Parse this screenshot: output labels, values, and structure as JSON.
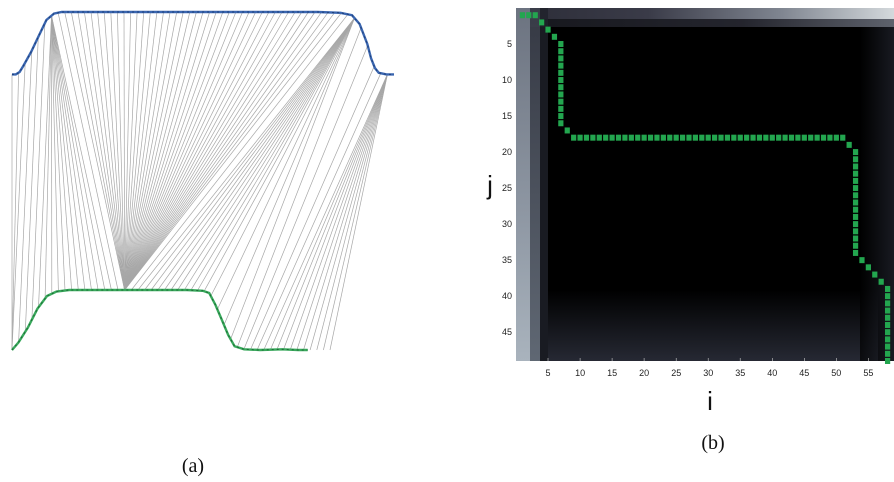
{
  "chart_data": [
    {
      "type": "line",
      "caption": "(a)",
      "series": [
        {
          "values": [
            [
              0.0,
              0.22
            ],
            [
              0.01,
              0.22
            ],
            [
              0.02,
              0.25
            ],
            [
              0.03,
              0.33
            ],
            [
              0.05,
              0.5
            ],
            [
              0.07,
              0.7
            ],
            [
              0.09,
              0.9
            ],
            [
              0.11,
              0.98
            ],
            [
              0.13,
              1.0
            ],
            [
              0.2,
              1.0
            ],
            [
              0.3,
              1.0
            ],
            [
              0.4,
              1.0
            ],
            [
              0.5,
              1.0
            ],
            [
              0.6,
              1.0
            ],
            [
              0.7,
              1.0
            ],
            [
              0.8,
              1.0
            ],
            [
              0.86,
              0.99
            ],
            [
              0.89,
              0.96
            ],
            [
              0.91,
              0.85
            ],
            [
              0.93,
              0.6
            ],
            [
              0.94,
              0.42
            ],
            [
              0.95,
              0.3
            ],
            [
              0.96,
              0.24
            ],
            [
              0.98,
              0.22
            ],
            [
              1.0,
              0.22
            ]
          ]
        },
        {
          "values": [
            [
              0.0,
              0.0
            ],
            [
              0.02,
              0.1
            ],
            [
              0.05,
              0.3
            ],
            [
              0.08,
              0.55
            ],
            [
              0.11,
              0.72
            ],
            [
              0.14,
              0.78
            ],
            [
              0.18,
              0.8
            ],
            [
              0.25,
              0.8
            ],
            [
              0.35,
              0.8
            ],
            [
              0.45,
              0.8
            ],
            [
              0.55,
              0.8
            ],
            [
              0.6,
              0.79
            ],
            [
              0.62,
              0.76
            ],
            [
              0.64,
              0.6
            ],
            [
              0.66,
              0.4
            ],
            [
              0.68,
              0.2
            ],
            [
              0.7,
              0.05
            ],
            [
              0.73,
              0.01
            ],
            [
              0.78,
              0.0
            ],
            [
              0.85,
              0.01
            ],
            [
              0.9,
              0.0
            ],
            [
              0.93,
              0.0
            ]
          ]
        }
      ]
    },
    {
      "type": "heatmap",
      "caption": "(b)",
      "xlabel": "i",
      "ylabel": "j",
      "xlim": [
        0,
        59
      ],
      "ylim": [
        0,
        49
      ],
      "xticks": [
        5,
        10,
        15,
        20,
        25,
        30,
        35,
        40,
        45,
        50,
        55
      ],
      "yticks": [
        5,
        10,
        15,
        20,
        25,
        30,
        35,
        40,
        45
      ],
      "path_color": "#23a64f",
      "warping_path": [
        [
          1,
          1
        ],
        [
          2,
          1
        ],
        [
          3,
          1
        ],
        [
          4,
          2
        ],
        [
          5,
          3
        ],
        [
          6,
          4
        ],
        [
          7,
          5
        ],
        [
          7,
          6
        ],
        [
          7,
          7
        ],
        [
          7,
          8
        ],
        [
          7,
          9
        ],
        [
          7,
          10
        ],
        [
          7,
          11
        ],
        [
          7,
          12
        ],
        [
          7,
          13
        ],
        [
          7,
          14
        ],
        [
          7,
          15
        ],
        [
          7,
          16
        ],
        [
          8,
          17
        ],
        [
          9,
          18
        ],
        [
          10,
          18
        ],
        [
          11,
          18
        ],
        [
          12,
          18
        ],
        [
          13,
          18
        ],
        [
          14,
          18
        ],
        [
          15,
          18
        ],
        [
          16,
          18
        ],
        [
          17,
          18
        ],
        [
          18,
          18
        ],
        [
          19,
          18
        ],
        [
          20,
          18
        ],
        [
          21,
          18
        ],
        [
          22,
          18
        ],
        [
          23,
          18
        ],
        [
          24,
          18
        ],
        [
          25,
          18
        ],
        [
          26,
          18
        ],
        [
          27,
          18
        ],
        [
          28,
          18
        ],
        [
          29,
          18
        ],
        [
          30,
          18
        ],
        [
          31,
          18
        ],
        [
          32,
          18
        ],
        [
          33,
          18
        ],
        [
          34,
          18
        ],
        [
          35,
          18
        ],
        [
          36,
          18
        ],
        [
          37,
          18
        ],
        [
          38,
          18
        ],
        [
          39,
          18
        ],
        [
          40,
          18
        ],
        [
          41,
          18
        ],
        [
          42,
          18
        ],
        [
          43,
          18
        ],
        [
          44,
          18
        ],
        [
          45,
          18
        ],
        [
          46,
          18
        ],
        [
          47,
          18
        ],
        [
          48,
          18
        ],
        [
          49,
          18
        ],
        [
          50,
          18
        ],
        [
          51,
          18
        ],
        [
          52,
          19
        ],
        [
          53,
          20
        ],
        [
          53,
          21
        ],
        [
          53,
          22
        ],
        [
          53,
          23
        ],
        [
          53,
          24
        ],
        [
          53,
          25
        ],
        [
          53,
          26
        ],
        [
          53,
          27
        ],
        [
          53,
          28
        ],
        [
          53,
          29
        ],
        [
          53,
          30
        ],
        [
          53,
          31
        ],
        [
          53,
          32
        ],
        [
          53,
          33
        ],
        [
          53,
          34
        ],
        [
          54,
          35
        ],
        [
          55,
          36
        ],
        [
          56,
          37
        ],
        [
          57,
          38
        ],
        [
          58,
          39
        ],
        [
          58,
          40
        ],
        [
          58,
          41
        ],
        [
          58,
          42
        ],
        [
          58,
          43
        ],
        [
          58,
          44
        ],
        [
          58,
          45
        ],
        [
          58,
          46
        ],
        [
          58,
          47
        ],
        [
          58,
          48
        ],
        [
          58,
          49
        ]
      ]
    }
  ]
}
